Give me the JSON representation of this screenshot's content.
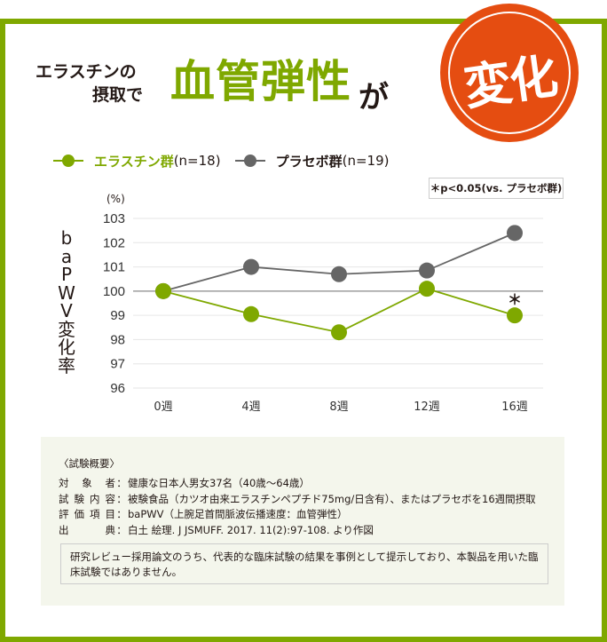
{
  "header": {
    "title_line1": "エラスチンの",
    "title_line2": "摂取で",
    "title_emphasis": "血管弾性",
    "title_particle": "が",
    "stamp_text": "変化"
  },
  "legend": {
    "items": [
      {
        "label": "エラスチン群",
        "n": "(n=18)",
        "color": "#7fa800"
      },
      {
        "label": "プラセボ群",
        "n": "(n=19)",
        "color": "#666666"
      }
    ]
  },
  "significance_note": "＊p<0.05(vs. プラセボ群)",
  "colors": {
    "brand_green": "#7fa800",
    "stamp_orange": "#e54d11",
    "placebo_grey": "#666666",
    "summary_bg": "#f4f6ec"
  },
  "chart_data": {
    "type": "line",
    "title": "エラスチンの摂取で血管弾性が変化",
    "xlabel": "",
    "ylabel": "baPWV変化率",
    "y_unit": "(%)",
    "categories": [
      "0週",
      "4週",
      "8週",
      "12週",
      "16週"
    ],
    "yticks": [
      "103",
      "102",
      "101",
      "100",
      "99",
      "98",
      "97",
      "96"
    ],
    "ylim": [
      96,
      103
    ],
    "grid": true,
    "reference_line": 100,
    "legend_position": "top",
    "series": [
      {
        "name": "エラスチン群(n=18)",
        "color": "#7fa800",
        "values": [
          100,
          99.05,
          98.3,
          100.1,
          99.0
        ]
      },
      {
        "name": "プラセボ群(n=19)",
        "color": "#666666",
        "values": [
          100,
          101.0,
          100.7,
          100.85,
          102.4
        ]
      }
    ],
    "annotations": [
      {
        "text": "＊",
        "category": "16週",
        "series": "エラスチン群(n=18)",
        "meaning": "p<0.05(vs. プラセボ群)"
      }
    ]
  },
  "summary": {
    "title": "〈試験概要〉",
    "rows": [
      {
        "key": "対象者",
        "value": "健康な日本人男女37名（40歳〜64歳）"
      },
      {
        "key": "試験内容",
        "value": "被験食品（カツオ由来エラスチンペプチド75mg/日含有）、またはプラセボを16週間摂取"
      },
      {
        "key": "評価項目",
        "value": "baPWV（上腕足首間脈波伝播速度：血管弾性）"
      },
      {
        "key": "出典",
        "value": "白土 絵理. J JSMUFF. 2017. 11(2):97-108. より作図"
      }
    ],
    "separator": "：",
    "disclaimer": "研究レビュー採用論文のうち、代表的な臨床試験の結果を事例として提示しており、本製品を用いた臨床試験ではありません。"
  }
}
